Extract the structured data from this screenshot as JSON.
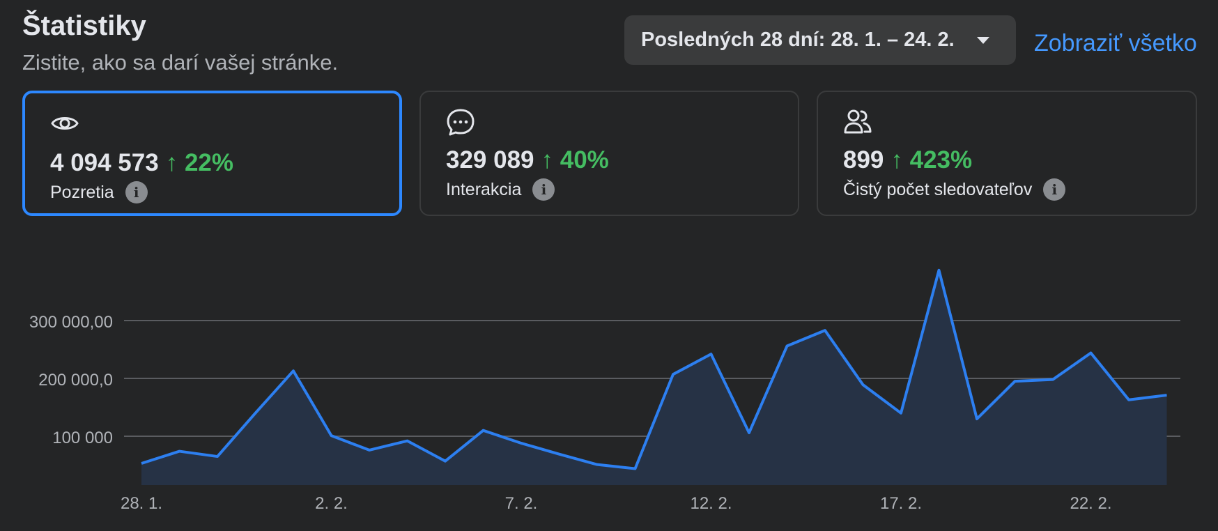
{
  "header": {
    "title": "Štatistiky",
    "subtitle": "Zistite, ako sa darí vašej stránke.",
    "date_range_label": "Posledných 28 dní: 28. 1. – 24. 2.",
    "see_all_label": "Zobraziť všetko"
  },
  "cards": [
    {
      "icon": "eye-icon",
      "value": "4 094 573",
      "delta": "↑ 22%",
      "label": "Pozretia",
      "active": true
    },
    {
      "icon": "chat-bubble-icon",
      "value": "329 089",
      "delta": "↑ 40%",
      "label": "Interakcia",
      "active": false
    },
    {
      "icon": "people-icon",
      "value": "899",
      "delta": "↑ 423%",
      "label": "Čistý počet sledovateľov",
      "active": false
    }
  ],
  "colors": {
    "background": "#242526",
    "accent": "#2d88ff",
    "line": "#2d7ff0",
    "positive": "#45bd62",
    "link": "#4599ff"
  },
  "chart_data": {
    "type": "area",
    "x": [
      "28. 1.",
      "29. 1.",
      "30. 1.",
      "31. 1.",
      "1. 2.",
      "2. 2.",
      "3. 2.",
      "4. 2.",
      "5. 2.",
      "6. 2.",
      "7. 2.",
      "8. 2.",
      "9. 2.",
      "10. 2.",
      "11. 2.",
      "12. 2.",
      "13. 2.",
      "14. 2.",
      "15. 2.",
      "16. 2.",
      "17. 2.",
      "18. 2.",
      "19. 2.",
      "20. 2.",
      "21. 2.",
      "22. 2.",
      "23. 2.",
      "24. 2."
    ],
    "values": [
      53000,
      74000,
      65000,
      140000,
      213000,
      101000,
      76000,
      92000,
      57000,
      110000,
      88000,
      69000,
      51000,
      44000,
      207000,
      242000,
      106000,
      256000,
      283000,
      189000,
      140000,
      387000,
      130000,
      195000,
      198000,
      244000,
      163000,
      171000
    ],
    "x_tick_labels": [
      "28. 1.",
      "2. 2.",
      "7. 2.",
      "12. 2.",
      "17. 2.",
      "22. 2."
    ],
    "y_tick_labels": [
      "100 000",
      "200 000,0",
      "300 000,00"
    ],
    "y_ticks": [
      100000,
      200000,
      300000
    ],
    "ylim": [
      15000,
      400000
    ],
    "grid": true
  }
}
